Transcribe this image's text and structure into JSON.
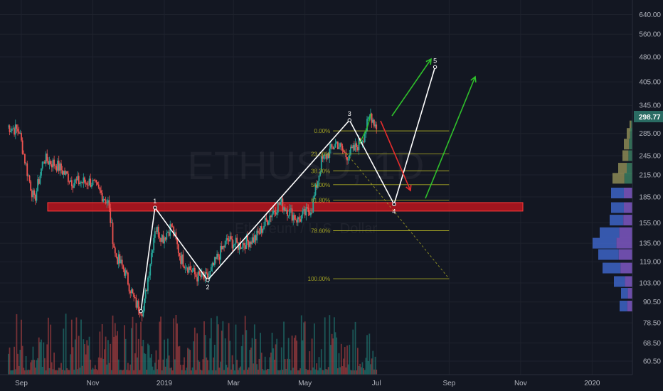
{
  "chart_data": {
    "type": "candlestick",
    "symbol_watermark": "ETHUSD, 1D",
    "watermark_subtitle": "Ethereum / U.S. Dollar",
    "y_axis": {
      "scale": "log",
      "ticks": [
        "640.00",
        "560.00",
        "480.00",
        "405.00",
        "345.00",
        "285.00",
        "245.00",
        "215.00",
        "185.00",
        "155.00",
        "135.00",
        "119.00",
        "103.00",
        "90.50",
        "78.50",
        "68.50",
        "60.50"
      ]
    },
    "x_axis": {
      "ticks": [
        "Sep",
        "Nov",
        "2019",
        "Mar",
        "May",
        "Jul",
        "Sep",
        "Nov",
        "2020"
      ]
    },
    "last_price": "298.77",
    "fib_levels": [
      {
        "label": "0.00%",
        "price": 290
      },
      {
        "label": "23.60%",
        "price": 248
      },
      {
        "label": "38.20%",
        "price": 221
      },
      {
        "label": "50.00%",
        "price": 201
      },
      {
        "label": "61.80%",
        "price": 181
      },
      {
        "label": "78.60%",
        "price": 147
      },
      {
        "label": "100.00%",
        "price": 106
      }
    ],
    "resistance_zone": {
      "low": 168,
      "high": 178
    },
    "waves": [
      {
        "label": "1",
        "date": "2018-12-24",
        "price": 172
      },
      {
        "label": "2",
        "date": "2019-02-07",
        "price": 105
      },
      {
        "label": "3",
        "date": "2019-06-08",
        "price": 312
      },
      {
        "label": "4",
        "date": "2019-07-16",
        "price": 176
      },
      {
        "label": "5",
        "date": "2019-08-20",
        "price": 448
      }
    ],
    "ohlc_anchors": [
      [
        "2018-08-20",
        300
      ],
      [
        "2018-08-30",
        290
      ],
      [
        "2018-09-06",
        220
      ],
      [
        "2018-09-12",
        180
      ],
      [
        "2018-09-20",
        240
      ],
      [
        "2018-10-01",
        230
      ],
      [
        "2018-10-15",
        205
      ],
      [
        "2018-10-31",
        205
      ],
      [
        "2018-11-14",
        178
      ],
      [
        "2018-11-20",
        125
      ],
      [
        "2018-11-28",
        112
      ],
      [
        "2018-12-07",
        90
      ],
      [
        "2018-12-14",
        85
      ],
      [
        "2018-12-24",
        150
      ],
      [
        "2018-12-31",
        140
      ],
      [
        "2019-01-07",
        152
      ],
      [
        "2019-01-15",
        122
      ],
      [
        "2019-01-28",
        108
      ],
      [
        "2019-02-07",
        106
      ],
      [
        "2019-02-15",
        122
      ],
      [
        "2019-02-24",
        138
      ],
      [
        "2019-03-05",
        133
      ],
      [
        "2019-03-20",
        140
      ],
      [
        "2019-04-02",
        165
      ],
      [
        "2019-04-10",
        178
      ],
      [
        "2019-04-25",
        158
      ],
      [
        "2019-05-07",
        172
      ],
      [
        "2019-05-15",
        235
      ],
      [
        "2019-05-28",
        268
      ],
      [
        "2019-06-05",
        245
      ],
      [
        "2019-06-12",
        255
      ],
      [
        "2019-06-20",
        280
      ],
      [
        "2019-06-26",
        325
      ],
      [
        "2019-07-01",
        298
      ]
    ],
    "volume_profile": [
      {
        "price": 300,
        "length": 4,
        "hue": "green"
      },
      {
        "price": 285,
        "length": 8,
        "hue": "green"
      },
      {
        "price": 265,
        "length": 12,
        "hue": "green"
      },
      {
        "price": 245,
        "length": 14,
        "hue": "green"
      },
      {
        "price": 225,
        "length": 20,
        "hue": "green"
      },
      {
        "price": 210,
        "length": 28,
        "hue": "green"
      },
      {
        "price": 190,
        "length": 30,
        "hue": "blue"
      },
      {
        "price": 172,
        "length": 30,
        "hue": "blue"
      },
      {
        "price": 158,
        "length": 32,
        "hue": "blue"
      },
      {
        "price": 145,
        "length": 46,
        "hue": "blue"
      },
      {
        "price": 135,
        "length": 56,
        "hue": "blue"
      },
      {
        "price": 125,
        "length": 48,
        "hue": "blue"
      },
      {
        "price": 114,
        "length": 42,
        "hue": "blue"
      },
      {
        "price": 104,
        "length": 26,
        "hue": "blue"
      },
      {
        "price": 96,
        "length": 16,
        "hue": "blue"
      },
      {
        "price": 88,
        "length": 18,
        "hue": "blue"
      }
    ]
  },
  "colors": {
    "background": "#131722",
    "grid": "#1e222d",
    "candle_up": "#26a69a",
    "candle_down": "#ef5350",
    "zone": "#d1151e",
    "fib": "#a3a324",
    "wave": "#ffffff",
    "arrow_up": "#2fc02b",
    "arrow_down": "#e62c2c",
    "badge": "#2a6b63",
    "axis_text": "#b2b5be"
  }
}
